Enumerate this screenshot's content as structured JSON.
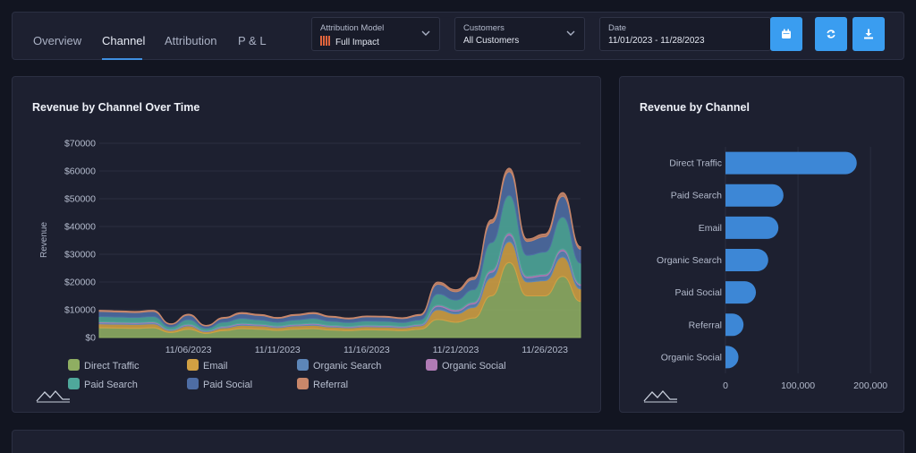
{
  "nav": {
    "tabs": [
      {
        "label": "Overview"
      },
      {
        "label": "Channel"
      },
      {
        "label": "Attribution"
      },
      {
        "label": "P & L"
      }
    ],
    "active_tab": "Channel"
  },
  "filters": {
    "attribution": {
      "label": "Attribution Model",
      "value": "Full Impact"
    },
    "customers": {
      "label": "Customers",
      "value": "All Customers"
    },
    "date": {
      "label": "Date",
      "value": "11/01/2023 - 11/28/2023"
    }
  },
  "icons": {
    "calendar": "calendar-icon",
    "refresh": "refresh-icon",
    "download": "download-icon",
    "chevron": "chevron-down-icon",
    "logo": "mountain-logo-icon"
  },
  "colors": {
    "accent": "#3a9df0",
    "bar": "#3d87d6"
  },
  "chart_data": [
    {
      "type": "area",
      "stacked": true,
      "title": "Revenue by Channel Over Time",
      "ylabel": "Revenue",
      "xlabel": "",
      "ylim": [
        0,
        70000
      ],
      "yticks": [
        "$0",
        "$10000",
        "$20000",
        "$30000",
        "$40000",
        "$50000",
        "$60000",
        "$70000"
      ],
      "x_start": "11/01/2023",
      "x": [
        "11/01",
        "11/02",
        "11/03",
        "11/04",
        "11/05",
        "11/06",
        "11/07",
        "11/08",
        "11/09",
        "11/10",
        "11/11",
        "11/12",
        "11/13",
        "11/14",
        "11/15",
        "11/16",
        "11/17",
        "11/18",
        "11/19",
        "11/20",
        "11/21",
        "11/22",
        "11/23",
        "11/24",
        "11/25",
        "11/26",
        "11/27",
        "11/28"
      ],
      "xtick_labels": [
        "11/06/2023",
        "11/11/2023",
        "11/16/2023",
        "11/21/2023",
        "11/26/2023"
      ],
      "xtick_values": [
        "11/06",
        "11/11",
        "11/16",
        "11/21",
        "11/26"
      ],
      "grid": true,
      "legend_position": "bottom",
      "series": [
        {
          "name": "Direct Traffic",
          "color": "#8fae62",
          "values": [
            3500,
            3400,
            3300,
            3500,
            1800,
            3000,
            1500,
            2500,
            3200,
            3000,
            2600,
            3000,
            3200,
            2700,
            2500,
            2800,
            2700,
            2500,
            3000,
            6500,
            5500,
            7000,
            15000,
            27000,
            15000,
            15000,
            22000,
            13000
          ]
        },
        {
          "name": "Email",
          "color": "#d1a043",
          "values": [
            1400,
            1400,
            1400,
            1400,
            700,
            1200,
            600,
            1000,
            1200,
            1200,
            1000,
            1200,
            1200,
            1100,
            1000,
            1100,
            1100,
            1000,
            1200,
            3500,
            3000,
            3800,
            6500,
            7500,
            5000,
            5500,
            7000,
            4500
          ]
        },
        {
          "name": "Organic Search",
          "color": "#5d86b8",
          "values": [
            400,
            400,
            400,
            400,
            200,
            300,
            200,
            300,
            400,
            300,
            300,
            300,
            400,
            300,
            300,
            300,
            300,
            300,
            300,
            1200,
            1000,
            1300,
            2000,
            2400,
            1500,
            1700,
            2200,
            1300
          ]
        },
        {
          "name": "Organic Social",
          "color": "#b07bb5",
          "values": [
            300,
            300,
            300,
            300,
            150,
            250,
            150,
            250,
            300,
            250,
            200,
            250,
            300,
            250,
            200,
            250,
            250,
            200,
            250,
            500,
            500,
            600,
            700,
            800,
            600,
            600,
            700,
            500
          ]
        },
        {
          "name": "Paid Search",
          "color": "#4fa89b",
          "values": [
            2000,
            1900,
            1800,
            2000,
            1000,
            1700,
            900,
            1500,
            1800,
            1600,
            1400,
            1600,
            1800,
            1500,
            1400,
            1500,
            1500,
            1400,
            1600,
            4000,
            3500,
            4500,
            10000,
            13500,
            7500,
            8000,
            11500,
            7500
          ]
        },
        {
          "name": "Paid Social",
          "color": "#4e6da4",
          "values": [
            1800,
            1800,
            1800,
            1800,
            900,
            1600,
            800,
            1400,
            1700,
            1600,
            1400,
            1600,
            1700,
            1500,
            1300,
            1500,
            1500,
            1400,
            1600,
            3500,
            3000,
            3700,
            7000,
            8500,
            5000,
            5500,
            7500,
            5000
          ]
        },
        {
          "name": "Referral",
          "color": "#c9876a",
          "values": [
            400,
            400,
            400,
            400,
            200,
            350,
            200,
            300,
            400,
            350,
            300,
            350,
            400,
            300,
            300,
            300,
            300,
            300,
            350,
            800,
            700,
            800,
            1200,
            1300,
            900,
            1000,
            1300,
            900
          ]
        }
      ]
    },
    {
      "type": "bar",
      "orientation": "horizontal",
      "title": "Revenue by Channel",
      "categories": [
        "Direct Traffic",
        "Paid Search",
        "Email",
        "Organic Search",
        "Paid Social",
        "Referral",
        "Organic Social"
      ],
      "values": [
        181000,
        80000,
        73000,
        59000,
        42000,
        19000,
        5000
      ],
      "xlim": [
        0,
        222000
      ],
      "xticks": [
        0,
        100000,
        200000
      ],
      "xtick_labels": [
        "0",
        "100,000",
        "200,000"
      ],
      "grid": true
    }
  ]
}
